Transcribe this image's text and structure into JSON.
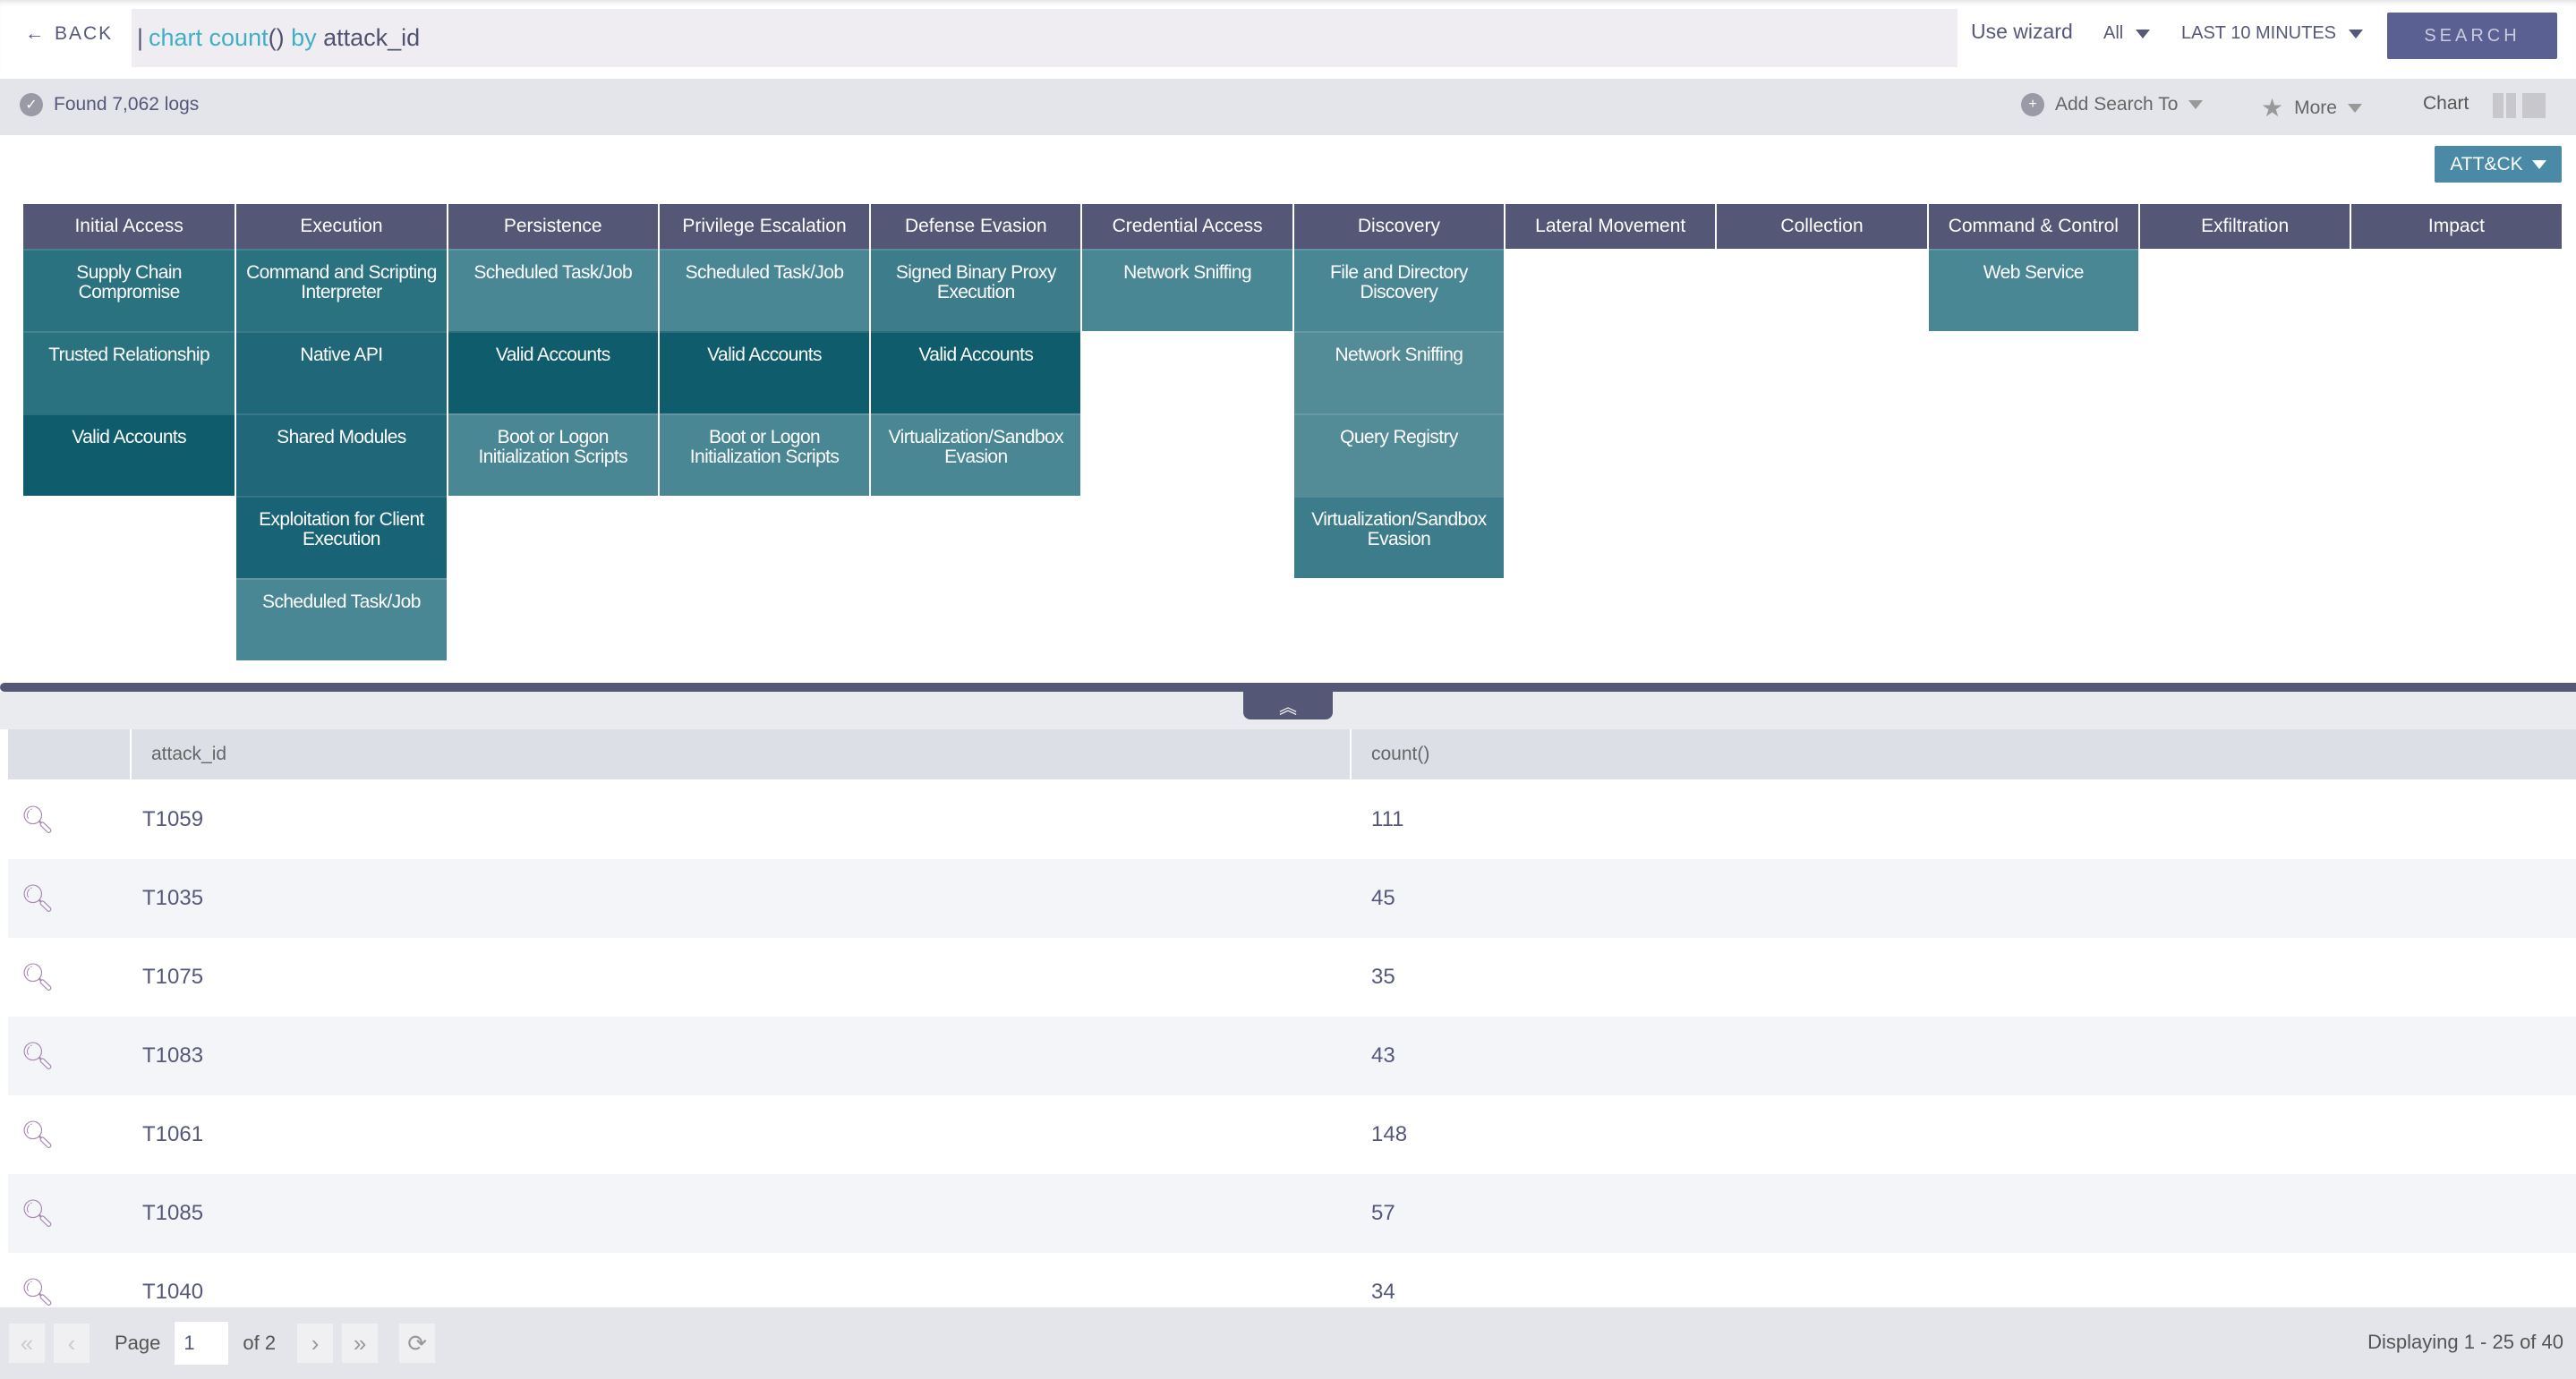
{
  "topbar": {
    "back_label": "BACK",
    "query": {
      "cursor": "|",
      "kw1": "chart count",
      "paren": "()",
      "kw2": " by ",
      "field": "attack_id"
    },
    "wizard_label": "Use wizard",
    "source_select": "All",
    "time_select": "LAST 10 MINUTES",
    "search_label": "SEARCH"
  },
  "statusbar": {
    "found": "Found 7,062 logs",
    "add_search": "Add Search To",
    "more": "More",
    "chart": "Chart"
  },
  "matrix": {
    "selector": "ATT&CK",
    "colors": {
      "header": "#545775",
      "light": "#4a8794",
      "lighter": "#538b97",
      "medium": "#2a7280",
      "medium2": "#1f6779",
      "deep": "#186375",
      "dark": "#0e5c6c",
      "mid_light": "#3d7d8b"
    },
    "tactics": [
      {
        "name": "Initial Access",
        "techniques": [
          {
            "name": "Supply Chain Compromise",
            "shade": "medium"
          },
          {
            "name": "Trusted Relationship",
            "shade": "medium"
          },
          {
            "name": "Valid Accounts",
            "shade": "dark"
          }
        ]
      },
      {
        "name": "Execution",
        "techniques": [
          {
            "name": "Command and Scripting Interpreter",
            "shade": "medium"
          },
          {
            "name": "Native API",
            "shade": "medium2"
          },
          {
            "name": "Shared Modules",
            "shade": "medium2"
          },
          {
            "name": "Exploitation for Client Execution",
            "shade": "deep"
          },
          {
            "name": "Scheduled Task/Job",
            "shade": "light"
          }
        ]
      },
      {
        "name": "Persistence",
        "techniques": [
          {
            "name": "Scheduled Task/Job",
            "shade": "light"
          },
          {
            "name": "Valid Accounts",
            "shade": "dark"
          },
          {
            "name": "Boot or Logon Initialization Scripts",
            "shade": "light"
          }
        ]
      },
      {
        "name": "Privilege Escalation",
        "techniques": [
          {
            "name": "Scheduled Task/Job",
            "shade": "light"
          },
          {
            "name": "Valid Accounts",
            "shade": "dark"
          },
          {
            "name": "Boot or Logon Initialization Scripts",
            "shade": "light"
          }
        ]
      },
      {
        "name": "Defense Evasion",
        "techniques": [
          {
            "name": "Signed Binary Proxy Execution",
            "shade": "mid_light"
          },
          {
            "name": "Valid Accounts",
            "shade": "dark"
          },
          {
            "name": "Virtualization/Sandbox Evasion",
            "shade": "light"
          }
        ]
      },
      {
        "name": "Credential Access",
        "techniques": [
          {
            "name": "Network Sniffing",
            "shade": "light"
          }
        ]
      },
      {
        "name": "Discovery",
        "techniques": [
          {
            "name": "File and Directory Discovery",
            "shade": "light"
          },
          {
            "name": "Network Sniffing",
            "shade": "lighter"
          },
          {
            "name": "Query Registry",
            "shade": "lighter"
          },
          {
            "name": "Virtualization/Sandbox Evasion",
            "shade": "mid_light"
          }
        ]
      },
      {
        "name": "Lateral Movement",
        "techniques": []
      },
      {
        "name": "Collection",
        "techniques": []
      },
      {
        "name": "Command & Control",
        "techniques": [
          {
            "name": "Web Service",
            "shade": "light"
          }
        ]
      },
      {
        "name": "Exfiltration",
        "techniques": []
      },
      {
        "name": "Impact",
        "techniques": []
      }
    ]
  },
  "table": {
    "columns": [
      "attack_id",
      "count()"
    ],
    "rows": [
      [
        "T1059",
        "111"
      ],
      [
        "T1035",
        "45"
      ],
      [
        "T1075",
        "35"
      ],
      [
        "T1083",
        "43"
      ],
      [
        "T1061",
        "148"
      ],
      [
        "T1085",
        "57"
      ],
      [
        "T1040",
        "34"
      ]
    ]
  },
  "footer": {
    "page_label": "Page",
    "page_value": "1",
    "of_label": "of 2",
    "displaying": "Displaying 1 - 25 of 40"
  }
}
